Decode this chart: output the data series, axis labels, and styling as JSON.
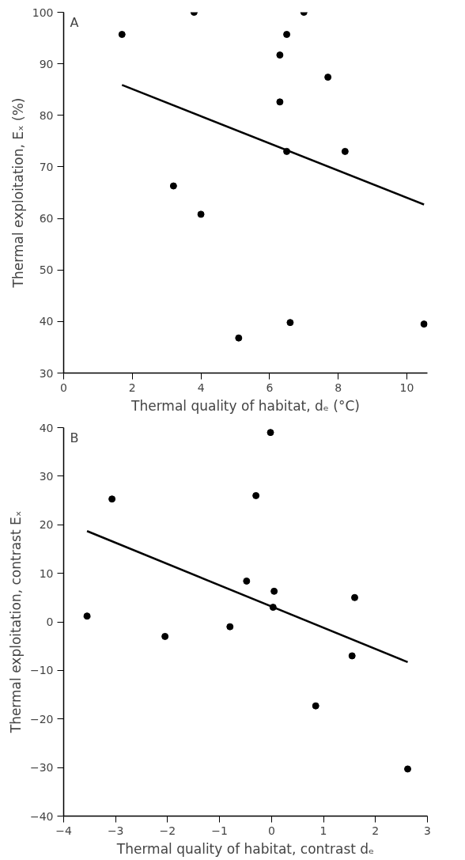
{
  "chart_data": [
    {
      "type": "scatter",
      "xlabel": "Thermal quality of habitat, dₑ (°C)",
      "ylabel": "Thermal exploitation, Eₓ (%)",
      "annotations": [
        "A"
      ],
      "grid": false,
      "xlim": [
        0,
        10.6
      ],
      "ylim": [
        30,
        100
      ],
      "xticks": [
        0,
        2,
        4,
        6,
        8,
        10
      ],
      "yticks": [
        30,
        40,
        50,
        60,
        70,
        80,
        90,
        100
      ],
      "series": [
        {
          "marker": "circle",
          "color": "#000000",
          "x": [
            1.7,
            3.8,
            3.2,
            4.0,
            5.1,
            6.3,
            6.3,
            6.5,
            6.5,
            6.6,
            7.0,
            7.7,
            8.2,
            10.5
          ],
          "values": [
            95.7,
            100,
            66.3,
            60.8,
            36.8,
            91.7,
            82.6,
            95.7,
            73,
            39.8,
            100,
            87.4,
            73,
            39.5
          ]
        },
        {
          "type": "line",
          "marker": "none",
          "color": "#000000",
          "x": [
            1.7,
            10.5
          ],
          "values": [
            85.9,
            62.7
          ]
        }
      ]
    },
    {
      "type": "scatter",
      "xlabel": "Thermal quality of habitat, contrast dₑ",
      "ylabel": "Thermal exploitation, contrast Eₓ",
      "annotations": [
        "B"
      ],
      "grid": false,
      "xlim": [
        -4,
        3
      ],
      "ylim": [
        -40,
        40
      ],
      "xticks": [
        {
          "value": -4,
          "label": "−4"
        },
        {
          "value": -3,
          "label": "−3"
        },
        {
          "value": -2,
          "label": "−2"
        },
        {
          "value": -1,
          "label": "−1"
        },
        0,
        1,
        2,
        3
      ],
      "yticks": [
        {
          "value": -40,
          "label": "−40"
        },
        {
          "value": -30,
          "label": "−30"
        },
        {
          "value": -20,
          "label": "−20"
        },
        {
          "value": -10,
          "label": "−10"
        },
        0,
        10,
        20,
        30,
        40
      ],
      "series": [
        {
          "marker": "circle",
          "color": "#000000",
          "x": [
            -3.55,
            -3.07,
            -2.05,
            -0.8,
            -0.48,
            -0.3,
            -0.02,
            0.03,
            0.05,
            0.85,
            1.55,
            1.6,
            2.62
          ],
          "values": [
            1.2,
            25.3,
            -3,
            -1,
            8.4,
            26,
            39,
            3,
            6.3,
            -17.3,
            -7,
            5,
            -30.3
          ]
        },
        {
          "type": "line",
          "marker": "none",
          "color": "#000000",
          "x": [
            -3.55,
            2.62
          ],
          "values": [
            18.7,
            -8.3
          ]
        }
      ]
    }
  ]
}
